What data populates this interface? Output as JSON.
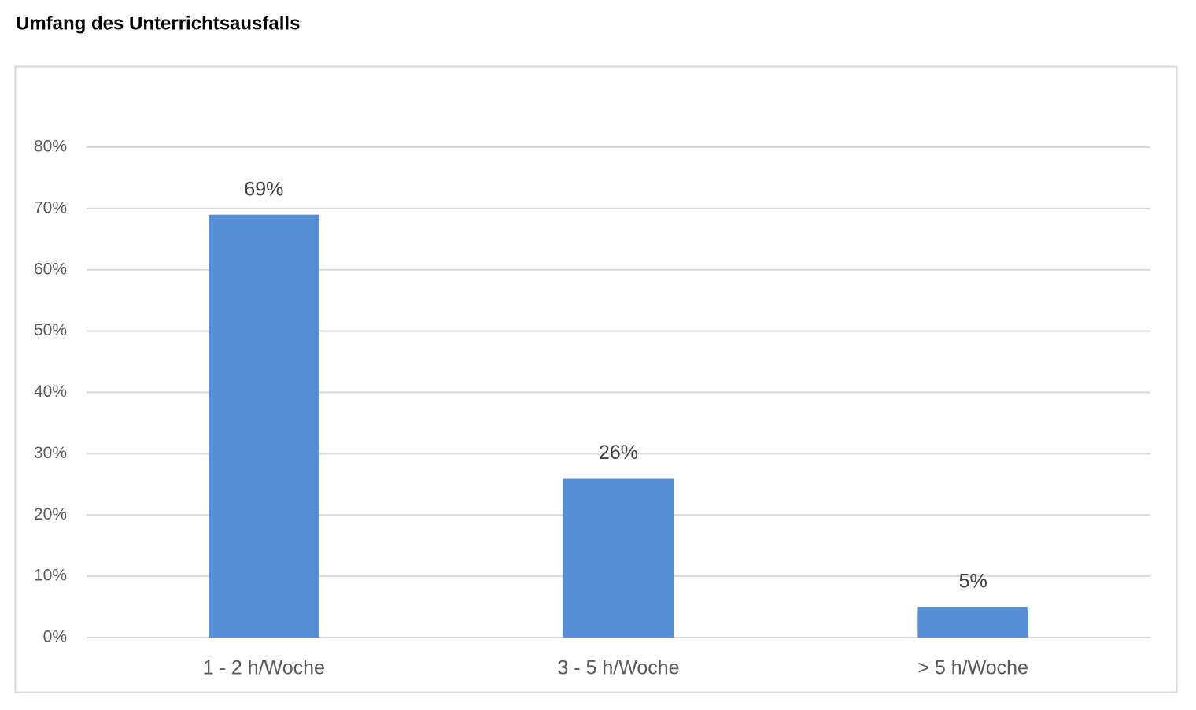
{
  "chart_data": {
    "type": "bar",
    "title": "Umfang des Unterrichtsausfalls",
    "categories": [
      "1 - 2 h/Woche",
      "3 - 5 h/Woche",
      "> 5 h/Woche"
    ],
    "values": [
      69,
      26,
      5
    ],
    "value_labels": [
      "69%",
      "26%",
      "5%"
    ],
    "color": "#558ed5",
    "ylim": [
      0,
      80
    ],
    "yticks": [
      {
        "value": 0,
        "label": "0%"
      },
      {
        "value": 10,
        "label": "10%"
      },
      {
        "value": 20,
        "label": "20%"
      },
      {
        "value": 30,
        "label": "30%"
      },
      {
        "value": 40,
        "label": "40%"
      },
      {
        "value": 50,
        "label": "50%"
      },
      {
        "value": 60,
        "label": "60%"
      },
      {
        "value": 70,
        "label": "70%"
      },
      {
        "value": 80,
        "label": "80%"
      }
    ],
    "grid": true
  }
}
